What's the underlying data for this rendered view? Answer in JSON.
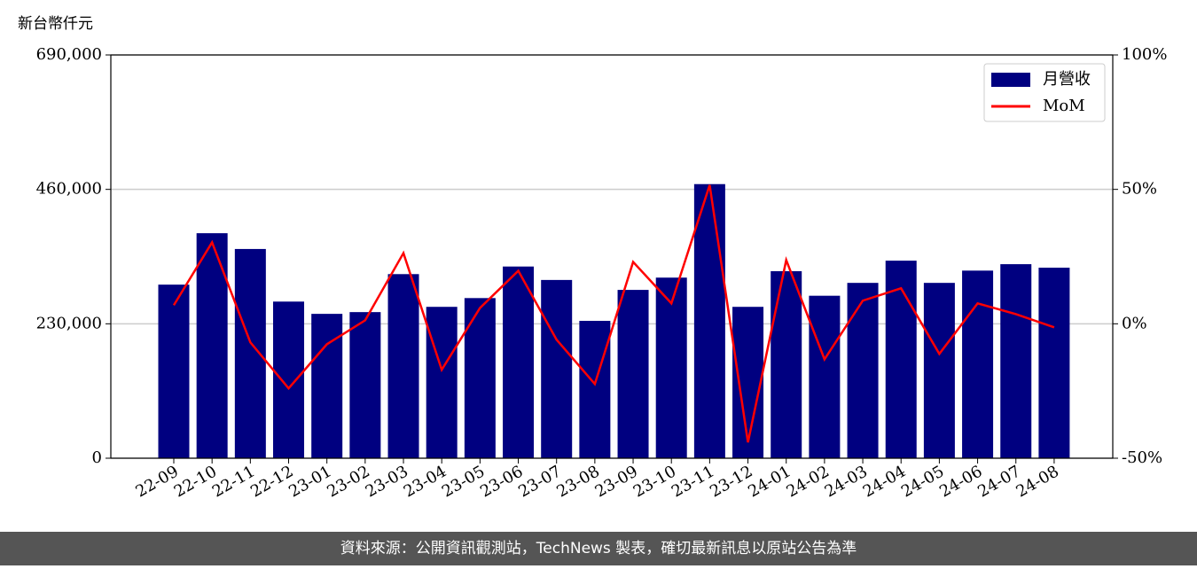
{
  "chart_data": {
    "type": "bar_line",
    "y_label": "新台幣仟元",
    "source": "資料來源：公開資訊觀測站，TechNews 製表，確切最新訊息以原站公告為準",
    "categories": [
      "22-09",
      "22-10",
      "22-11",
      "22-12",
      "23-01",
      "23-02",
      "23-03",
      "23-04",
      "23-05",
      "23-06",
      "23-07",
      "23-08",
      "23-09",
      "23-10",
      "23-11",
      "23-12",
      "24-01",
      "24-02",
      "24-03",
      "24-04",
      "24-05",
      "24-06",
      "24-07",
      "24-08"
    ],
    "series": [
      {
        "name": "月營收",
        "color": "#000080",
        "type": "bar",
        "values": [
          297000,
          385000,
          358000,
          268000,
          247000,
          250000,
          315000,
          259000,
          274000,
          328000,
          305000,
          235000,
          288000,
          309000,
          469000,
          259000,
          320000,
          278000,
          300000,
          338000,
          300000,
          321000,
          332000,
          326000
        ]
      },
      {
        "name": "MoM",
        "color": "#ff0000",
        "type": "line",
        "axis": "y2",
        "values": [
          6.9,
          30.3,
          -6.9,
          -24.0,
          -7.6,
          1.3,
          26.3,
          -17.1,
          5.9,
          19.7,
          -5.9,
          -22.4,
          23.0,
          7.6,
          51.6,
          -44.1,
          23.7,
          -13.2,
          8.6,
          13.2,
          -11.2,
          7.6,
          3.6,
          -1.3
        ]
      }
    ],
    "ylim": [
      0,
      690000
    ],
    "yticks": [
      0,
      {
        "value": 230000,
        "label": "230,000"
      },
      {
        "value": 460000,
        "label": "460,000"
      },
      {
        "value": 690000,
        "label": "690,000"
      }
    ],
    "y2lim": [
      -50,
      100
    ],
    "y2ticks": [
      {
        "value": -50,
        "label": "-50%"
      },
      {
        "value": 0,
        "label": "0%"
      },
      {
        "value": 50,
        "label": "50%"
      },
      {
        "value": 100,
        "label": "100%"
      }
    ],
    "grid": true,
    "legend": "upper right"
  }
}
